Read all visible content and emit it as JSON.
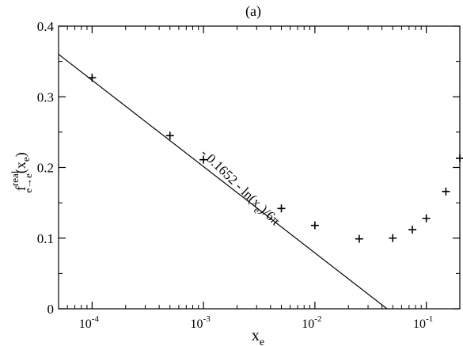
{
  "panel_label": "(a)",
  "chart_data": {
    "type": "scatter",
    "title": "",
    "xlabel": {
      "base": "x",
      "sub": "e"
    },
    "ylabel": {
      "base": "f",
      "sup": "real",
      "sub": "e→e",
      "arg": "x",
      "arg_sub": "e"
    },
    "x_scale": "log",
    "xlim": [
      5e-05,
      0.2
    ],
    "ylim": [
      0,
      0.4
    ],
    "grid": false,
    "legend": "none",
    "x_ticks": [
      {
        "value": 0.0001,
        "base": "10",
        "exp": "-4"
      },
      {
        "value": 0.001,
        "base": "10",
        "exp": "-3"
      },
      {
        "value": 0.01,
        "base": "10",
        "exp": "-2"
      },
      {
        "value": 0.1,
        "base": "10",
        "exp": "-1"
      }
    ],
    "y_ticks": [
      {
        "value": 0,
        "label": "0"
      },
      {
        "value": 0.1,
        "label": "0.1"
      },
      {
        "value": 0.2,
        "label": "0.2"
      },
      {
        "value": 0.3,
        "label": "0.3"
      },
      {
        "value": 0.4,
        "label": "0.4"
      }
    ],
    "points": [
      {
        "x": 0.0001,
        "y": 0.327
      },
      {
        "x": 0.0005,
        "y": 0.245
      },
      {
        "x": 0.001,
        "y": 0.211
      },
      {
        "x": 0.005,
        "y": 0.142
      },
      {
        "x": 0.01,
        "y": 0.118
      },
      {
        "x": 0.025,
        "y": 0.099
      },
      {
        "x": 0.05,
        "y": 0.1
      },
      {
        "x": 0.075,
        "y": 0.112
      },
      {
        "x": 0.1,
        "y": 0.128
      },
      {
        "x": 0.15,
        "y": 0.166
      },
      {
        "x": 0.2,
        "y": 0.213
      }
    ],
    "fit_line": {
      "intercept": -0.1652,
      "slope_over_ln": -0.05305,
      "label": {
        "p1": "- 0.1652 - ln(x",
        "sub": "e",
        "p2": ")/6π"
      }
    }
  }
}
